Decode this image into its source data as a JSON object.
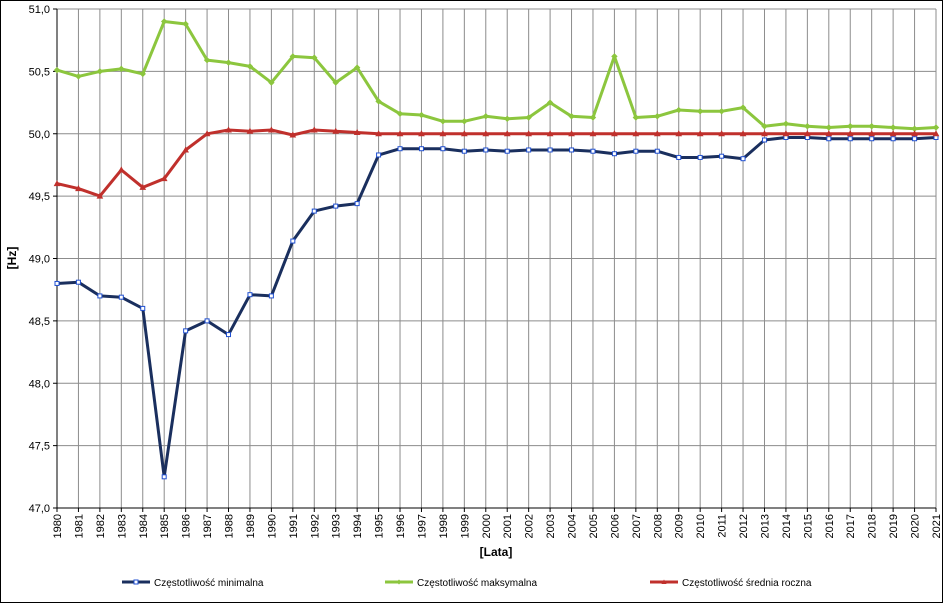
{
  "chart_data": {
    "type": "line",
    "title": "",
    "xlabel": "[Lata]",
    "ylabel": "[Hz]",
    "ylim": [
      47.0,
      51.0
    ],
    "yticks": [
      "47,0",
      "47,5",
      "48,0",
      "48,5",
      "49,0",
      "49,5",
      "50,0",
      "50,5",
      "51,0"
    ],
    "grid": true,
    "legend_position": "bottom",
    "x": [
      "1980",
      "1981",
      "1982",
      "1983",
      "1984",
      "1985",
      "1986",
      "1987",
      "1988",
      "1989",
      "1990",
      "1991",
      "1992",
      "1993",
      "1994",
      "1995",
      "1996",
      "1997",
      "1998",
      "1999",
      "2000",
      "2001",
      "2002",
      "2003",
      "2004",
      "2005",
      "2006",
      "2007",
      "2008",
      "2009",
      "2010",
      "2011",
      "2012",
      "2013",
      "2014",
      "2015",
      "2016",
      "2017",
      "2018",
      "2019",
      "2020",
      "2021"
    ],
    "series": [
      {
        "name": "Częstotliwość  minimalna",
        "color": "#1a2f5e",
        "values": [
          48.8,
          48.81,
          48.7,
          48.69,
          48.6,
          47.25,
          48.42,
          48.5,
          48.39,
          48.71,
          48.7,
          49.14,
          49.38,
          49.42,
          49.44,
          49.83,
          49.88,
          49.88,
          49.88,
          49.86,
          49.87,
          49.86,
          49.87,
          49.87,
          49.87,
          49.86,
          49.84,
          49.86,
          49.86,
          49.81,
          49.81,
          49.82,
          49.8,
          49.95,
          49.97,
          49.97,
          49.96,
          49.96,
          49.96,
          49.96,
          49.96,
          49.97
        ]
      },
      {
        "name": "Częstotliwość  maksymalna",
        "color": "#8cc63e",
        "values": [
          50.51,
          50.46,
          50.5,
          50.52,
          50.48,
          50.9,
          50.88,
          50.59,
          50.57,
          50.54,
          50.41,
          50.62,
          50.61,
          50.41,
          50.53,
          50.26,
          50.16,
          50.15,
          50.1,
          50.1,
          50.14,
          50.12,
          50.13,
          50.25,
          50.14,
          50.13,
          50.62,
          50.13,
          50.14,
          50.19,
          50.18,
          50.18,
          50.21,
          50.06,
          50.08,
          50.06,
          50.05,
          50.06,
          50.06,
          50.05,
          50.04,
          50.05
        ]
      },
      {
        "name": "Częstotliwość  średnia roczna",
        "color": "#c0302c",
        "values": [
          49.6,
          49.56,
          49.5,
          49.71,
          49.57,
          49.64,
          49.87,
          50.0,
          50.03,
          50.02,
          50.03,
          49.99,
          50.03,
          50.02,
          50.01,
          50.0,
          50.0,
          50.0,
          50.0,
          50.0,
          50.0,
          50.0,
          50.0,
          50.0,
          50.0,
          50.0,
          50.0,
          50.0,
          50.0,
          50.0,
          50.0,
          50.0,
          50.0,
          50.0,
          50.0,
          50.0,
          50.0,
          50.0,
          50.0,
          50.0,
          50.0,
          50.0
        ]
      }
    ]
  }
}
